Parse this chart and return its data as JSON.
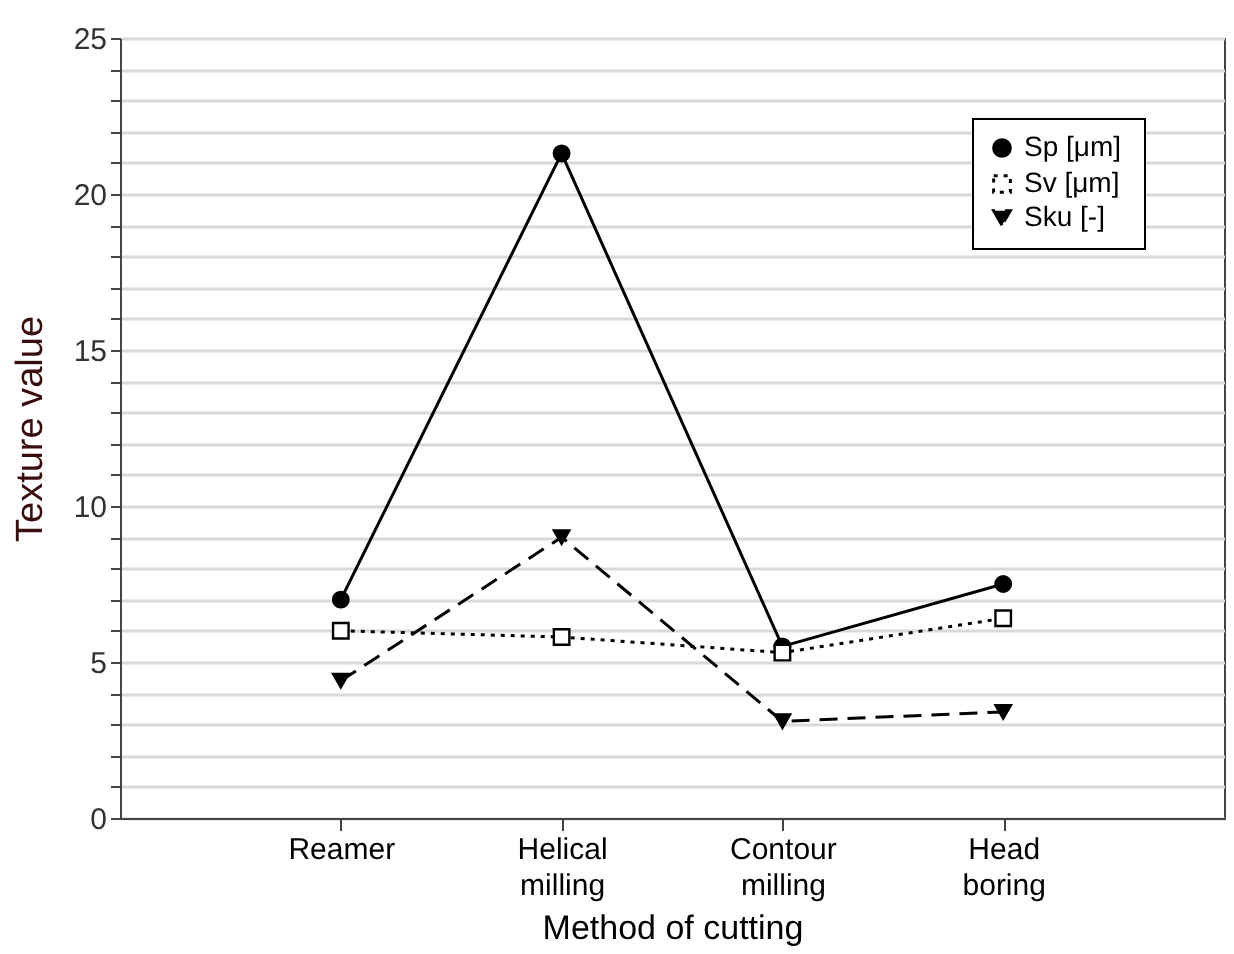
{
  "chart_data": {
    "type": "line",
    "xlabel": "Method of cutting",
    "ylabel": "Texture value",
    "categories": [
      "Reamer",
      "Helical milling",
      "Contour milling",
      "Head boring"
    ],
    "series": [
      {
        "name": "Sp [μm]",
        "color": "#000000",
        "values": [
          7.0,
          21.3,
          5.5,
          7.5
        ],
        "marker": "circle",
        "line_style": "solid"
      },
      {
        "name": "Sv  [μm]",
        "color": "#000000",
        "values": [
          6.0,
          5.8,
          5.3,
          6.4
        ],
        "marker": "square",
        "line_style": "dotted"
      },
      {
        "name": "Sku [-]",
        "color": "#000000",
        "values": [
          4.4,
          9.0,
          3.1,
          3.4
        ],
        "marker": "triangle",
        "line_style": "dashed"
      }
    ],
    "ylim": [
      0,
      25
    ],
    "yticks": [
      0,
      {
        "value": 1,
        "label": null
      },
      {
        "value": 2,
        "label": null
      },
      {
        "value": 3,
        "label": null
      },
      {
        "value": 4,
        "label": null
      },
      5,
      {
        "value": 6,
        "label": null
      },
      {
        "value": 7,
        "label": null
      },
      {
        "value": 8,
        "label": null
      },
      {
        "value": 9,
        "label": null
      },
      10,
      {
        "value": 11,
        "label": null
      },
      {
        "value": 12,
        "label": null
      },
      {
        "value": 13,
        "label": null
      },
      {
        "value": 14,
        "label": null
      },
      15,
      {
        "value": 16,
        "label": null
      },
      {
        "value": 17,
        "label": null
      },
      {
        "value": 18,
        "label": null
      },
      {
        "value": 19,
        "label": null
      },
      20,
      {
        "value": 21,
        "label": null
      },
      {
        "value": 22,
        "label": null
      },
      {
        "value": 23,
        "label": null
      },
      {
        "value": 24,
        "label": null
      },
      25
    ],
    "grid": "y",
    "legend": "top right"
  }
}
